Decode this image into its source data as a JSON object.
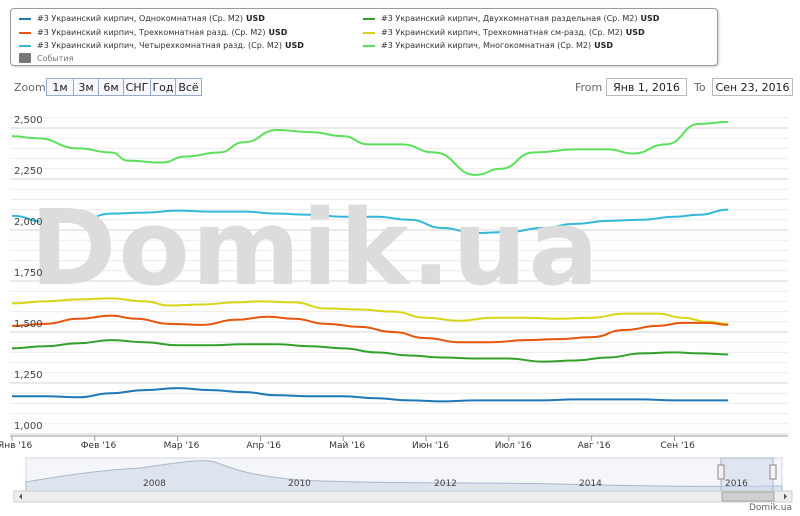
{
  "legend": {
    "items": [
      {
        "name": "#3 Украинский кирпич, Однокомнатная (Ср. М2)",
        "unit": "USD",
        "color": "#1f78b4"
      },
      {
        "name": "#3 Украинский кирпич, Двухкомнатная раздельная (Ср. М2)",
        "unit": "USD",
        "color": "#33a02c"
      },
      {
        "name": "#3 Украинский кирпич, Трехкомнатная разд. (Ср. М2)",
        "unit": "USD",
        "color": "#e6550d"
      },
      {
        "name": "#3 Украинский кирпич, Трехкомнатная см-разд. (Ср. М2)",
        "unit": "USD",
        "color": "#d6d616"
      },
      {
        "name": "#3 Украинский кирпич, Четырехкомнатная разд. (Ср. М2)",
        "unit": "USD",
        "color": "#34b8d8"
      },
      {
        "name": "#3 Украинский кирпич, Многокомнатная (Ср. М2)",
        "unit": "USD",
        "color": "#5ce05c"
      }
    ],
    "events_label": "События"
  },
  "zoom": {
    "label": "Zoom",
    "buttons": [
      "1м",
      "3м",
      "6м",
      "СНГ",
      "Год",
      "Всё"
    ]
  },
  "range": {
    "from_label": "From",
    "from_value": "Янв 1, 2016",
    "to_label": "To",
    "to_value": "Сен 23, 2016"
  },
  "watermark": "Domik.ua",
  "credit": "Domik.ua",
  "navigator": {
    "years": [
      "2008",
      "2010",
      "2012",
      "2014",
      "2016"
    ]
  },
  "chart_data": {
    "type": "line",
    "x_labels": [
      "Янв '16",
      "Фев '16",
      "Мар '16",
      "Апр '16",
      "Май '16",
      "Июн '16",
      "Июл '16",
      "Авг '16",
      "Сен '16"
    ],
    "y_ticks": [
      "1,000",
      "1,250",
      "1,500",
      "1,750",
      "2,000",
      "2,250",
      "2,500"
    ],
    "ylim": [
      1000,
      2500
    ],
    "x_range": [
      0,
      8.65
    ],
    "series": [
      {
        "name": "#3 Украинский кирпич, Многокомнатная (Ср. М2)",
        "color": "#5ce05c",
        "points": [
          [
            0,
            2460
          ],
          [
            0.3,
            2450
          ],
          [
            0.8,
            2400
          ],
          [
            1.2,
            2380
          ],
          [
            1.4,
            2340
          ],
          [
            1.8,
            2330
          ],
          [
            2.1,
            2360
          ],
          [
            2.5,
            2380
          ],
          [
            2.8,
            2430
          ],
          [
            3.2,
            2490
          ],
          [
            3.6,
            2480
          ],
          [
            4.0,
            2460
          ],
          [
            4.3,
            2420
          ],
          [
            4.7,
            2420
          ],
          [
            5.1,
            2380
          ],
          [
            5.6,
            2270
          ],
          [
            5.9,
            2300
          ],
          [
            6.3,
            2380
          ],
          [
            6.8,
            2395
          ],
          [
            7.2,
            2395
          ],
          [
            7.5,
            2375
          ],
          [
            7.9,
            2420
          ],
          [
            8.3,
            2520
          ],
          [
            8.65,
            2530
          ]
        ]
      },
      {
        "name": "#3 Украинский кирпич, Четырехкомнатная разд. (Ср. М2)",
        "color": "#34b8d8",
        "points": [
          [
            0,
            2070
          ],
          [
            0.4,
            2040
          ],
          [
            0.8,
            2045
          ],
          [
            1.2,
            2080
          ],
          [
            1.6,
            2085
          ],
          [
            2.0,
            2095
          ],
          [
            2.4,
            2090
          ],
          [
            2.8,
            2090
          ],
          [
            3.2,
            2080
          ],
          [
            3.6,
            2075
          ],
          [
            4.0,
            2065
          ],
          [
            4.4,
            2065
          ],
          [
            4.8,
            2050
          ],
          [
            5.2,
            2010
          ],
          [
            5.6,
            1985
          ],
          [
            6.0,
            1990
          ],
          [
            6.4,
            2010
          ],
          [
            6.8,
            2030
          ],
          [
            7.2,
            2045
          ],
          [
            7.6,
            2050
          ],
          [
            8.0,
            2065
          ],
          [
            8.3,
            2075
          ],
          [
            8.65,
            2100
          ]
        ]
      },
      {
        "name": "#3 Украинский кирпич, Трехкомнатная см-разд. (Ср. М2)",
        "color": "#d6d616",
        "points": [
          [
            0,
            1640
          ],
          [
            0.4,
            1650
          ],
          [
            0.8,
            1660
          ],
          [
            1.2,
            1665
          ],
          [
            1.6,
            1650
          ],
          [
            1.9,
            1630
          ],
          [
            2.3,
            1635
          ],
          [
            2.7,
            1645
          ],
          [
            3.0,
            1650
          ],
          [
            3.4,
            1645
          ],
          [
            3.8,
            1615
          ],
          [
            4.2,
            1610
          ],
          [
            4.6,
            1600
          ],
          [
            5.0,
            1570
          ],
          [
            5.4,
            1555
          ],
          [
            5.8,
            1570
          ],
          [
            6.2,
            1570
          ],
          [
            6.6,
            1565
          ],
          [
            7.0,
            1570
          ],
          [
            7.4,
            1590
          ],
          [
            7.8,
            1590
          ],
          [
            8.1,
            1570
          ],
          [
            8.4,
            1550
          ],
          [
            8.65,
            1540
          ]
        ]
      },
      {
        "name": "#3 Украинский кирпич, Трехкомнатная разд. (Ср. М2)",
        "color": "#e6550d",
        "points": [
          [
            0,
            1530
          ],
          [
            0.4,
            1540
          ],
          [
            0.8,
            1565
          ],
          [
            1.2,
            1580
          ],
          [
            1.5,
            1565
          ],
          [
            1.9,
            1540
          ],
          [
            2.3,
            1535
          ],
          [
            2.7,
            1560
          ],
          [
            3.1,
            1575
          ],
          [
            3.4,
            1565
          ],
          [
            3.8,
            1540
          ],
          [
            4.2,
            1525
          ],
          [
            4.6,
            1500
          ],
          [
            5.0,
            1470
          ],
          [
            5.4,
            1450
          ],
          [
            5.8,
            1450
          ],
          [
            6.2,
            1460
          ],
          [
            6.6,
            1465
          ],
          [
            7.0,
            1475
          ],
          [
            7.4,
            1510
          ],
          [
            7.8,
            1530
          ],
          [
            8.1,
            1545
          ],
          [
            8.4,
            1545
          ],
          [
            8.65,
            1535
          ]
        ]
      },
      {
        "name": "#3 Украинский кирпич, Двухкомнатная раздельная (Ср. М2)",
        "color": "#33a02c",
        "points": [
          [
            0,
            1420
          ],
          [
            0.4,
            1430
          ],
          [
            0.8,
            1445
          ],
          [
            1.2,
            1460
          ],
          [
            1.6,
            1450
          ],
          [
            2.0,
            1435
          ],
          [
            2.4,
            1435
          ],
          [
            2.8,
            1440
          ],
          [
            3.2,
            1440
          ],
          [
            3.6,
            1430
          ],
          [
            4.0,
            1420
          ],
          [
            4.4,
            1400
          ],
          [
            4.8,
            1385
          ],
          [
            5.2,
            1375
          ],
          [
            5.6,
            1370
          ],
          [
            6.0,
            1370
          ],
          [
            6.4,
            1355
          ],
          [
            6.8,
            1360
          ],
          [
            7.2,
            1375
          ],
          [
            7.6,
            1395
          ],
          [
            8.0,
            1400
          ],
          [
            8.3,
            1395
          ],
          [
            8.65,
            1390
          ]
        ]
      },
      {
        "name": "#3 Украинский кирпич, Однокомнатная (Ср. М2)",
        "color": "#1f78b4",
        "points": [
          [
            0,
            1185
          ],
          [
            0.4,
            1185
          ],
          [
            0.8,
            1180
          ],
          [
            1.2,
            1200
          ],
          [
            1.6,
            1215
          ],
          [
            2.0,
            1225
          ],
          [
            2.4,
            1215
          ],
          [
            2.8,
            1205
          ],
          [
            3.2,
            1190
          ],
          [
            3.6,
            1185
          ],
          [
            4.0,
            1185
          ],
          [
            4.4,
            1175
          ],
          [
            4.8,
            1165
          ],
          [
            5.2,
            1160
          ],
          [
            5.6,
            1165
          ],
          [
            6.0,
            1165
          ],
          [
            6.4,
            1165
          ],
          [
            6.8,
            1170
          ],
          [
            7.2,
            1170
          ],
          [
            7.6,
            1170
          ],
          [
            8.0,
            1165
          ],
          [
            8.3,
            1165
          ],
          [
            8.65,
            1165
          ]
        ]
      }
    ]
  }
}
